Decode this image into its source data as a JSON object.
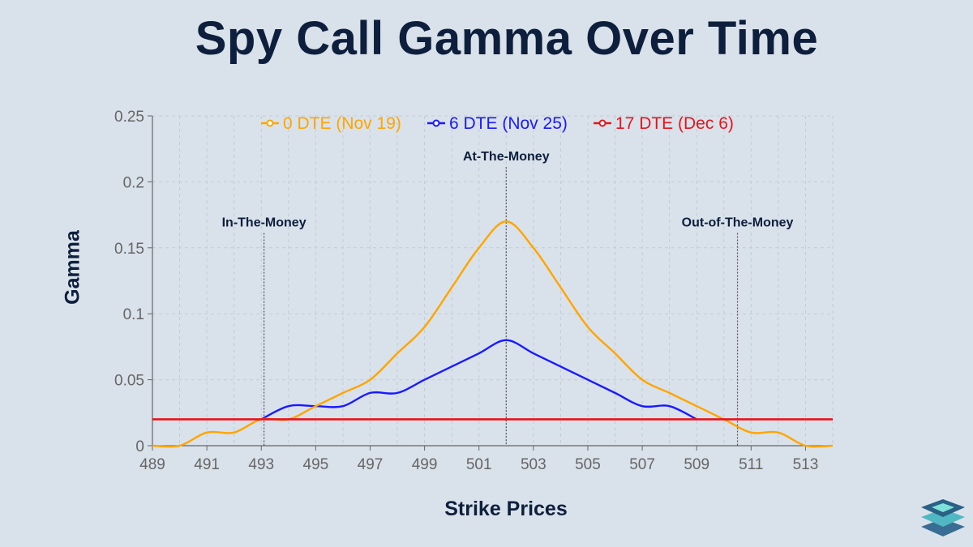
{
  "header": {
    "title": "Spy Call Gamma Over Time"
  },
  "chart_data": {
    "type": "line",
    "xlabel": "Strike Prices",
    "ylabel": "Gamma",
    "xlim": [
      489,
      514
    ],
    "ylim": [
      0,
      0.25
    ],
    "x_ticks": [
      489,
      491,
      493,
      495,
      497,
      499,
      501,
      503,
      505,
      507,
      509,
      511,
      513
    ],
    "y_ticks": [
      0,
      0.05,
      0.1,
      0.15,
      0.2,
      0.25
    ],
    "y_tick_labels": [
      "0",
      "0.05",
      "0.1",
      "0.15",
      "0.2",
      "0.25"
    ],
    "grid": true,
    "legend_position": "top",
    "series": [
      {
        "name": "0 DTE (Nov 19)",
        "color": "#ffa500",
        "x": [
          489,
          490,
          491,
          492,
          493,
          494,
          495,
          496,
          497,
          498,
          499,
          500,
          501,
          502,
          503,
          504,
          505,
          506,
          507,
          508,
          509,
          510,
          511,
          512,
          513,
          514
        ],
        "y": [
          0,
          0,
          0.01,
          0.01,
          0.02,
          0.02,
          0.03,
          0.04,
          0.05,
          0.07,
          0.09,
          0.12,
          0.15,
          0.17,
          0.15,
          0.12,
          0.09,
          0.07,
          0.05,
          0.04,
          0.03,
          0.02,
          0.01,
          0.01,
          0,
          0
        ]
      },
      {
        "name": "6 DTE (Nov 25)",
        "color": "#1a1aff",
        "x": [
          493,
          494,
          495,
          496,
          497,
          498,
          499,
          500,
          501,
          502,
          503,
          504,
          505,
          506,
          507,
          508,
          509
        ],
        "y": [
          0.02,
          0.03,
          0.03,
          0.03,
          0.04,
          0.04,
          0.05,
          0.06,
          0.07,
          0.08,
          0.07,
          0.06,
          0.05,
          0.04,
          0.03,
          0.03,
          0.02
        ]
      },
      {
        "name": "17 DTE (Dec 6)",
        "color": "#e8141c",
        "x": [
          489,
          514
        ],
        "y": [
          0.02,
          0.02
        ]
      }
    ],
    "annotations": [
      {
        "text": "In-The-Money",
        "x": 493.1,
        "label_y": 0.16
      },
      {
        "text": "At-The-Money",
        "x": 502,
        "label_y": 0.21
      },
      {
        "text": "Out-of-The-Money",
        "x": 510.5,
        "label_y": 0.16
      }
    ]
  }
}
